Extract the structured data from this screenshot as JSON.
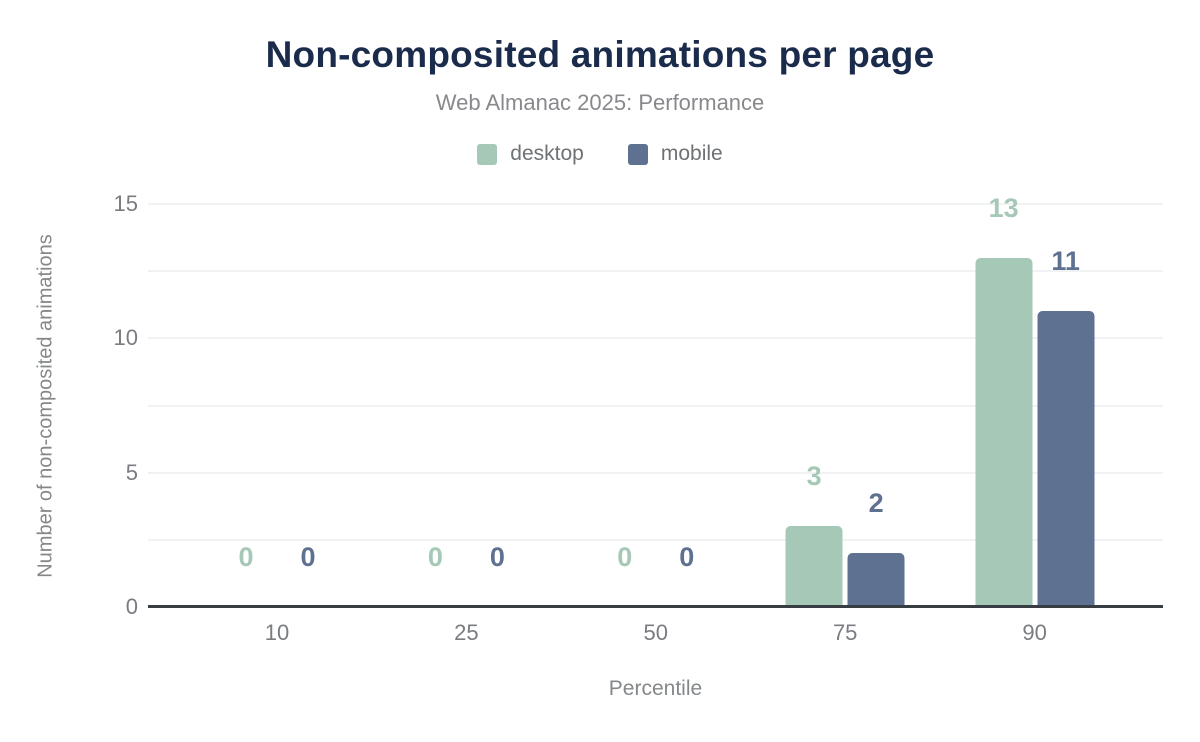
{
  "title": "Non-composited animations per page",
  "subtitle": "Web Almanac 2025: Performance",
  "chart_data": {
    "type": "bar",
    "title": "Non-composited animations per page",
    "subtitle": "Web Almanac 2025: Performance",
    "categories": [
      "10",
      "25",
      "50",
      "75",
      "90"
    ],
    "series": [
      {
        "name": "desktop",
        "color": "#a5c9b6",
        "values": [
          0,
          0,
          0,
          3,
          13
        ]
      },
      {
        "name": "mobile",
        "color": "#5f7190",
        "values": [
          0,
          0,
          0,
          2,
          11
        ]
      }
    ],
    "xlabel": "Percentile",
    "ylabel": "Number of non-composited animations",
    "ylim": [
      0,
      15
    ],
    "yticks": [
      0,
      5,
      10,
      15
    ],
    "grid": true,
    "grid_interval": 2.5,
    "legend_position": "top",
    "value_labels": true
  },
  "colors": {
    "background": "#ffffff",
    "title": "#1b2b4b",
    "subtitle": "#87898c",
    "axis_title": "#85888a",
    "tick_label": "#797c80",
    "legend_label": "#6f7275",
    "gridline": "#f1f2f4",
    "baseline": "#383d44",
    "desktop": "#a5c9b6",
    "mobile": "#5f7190"
  }
}
